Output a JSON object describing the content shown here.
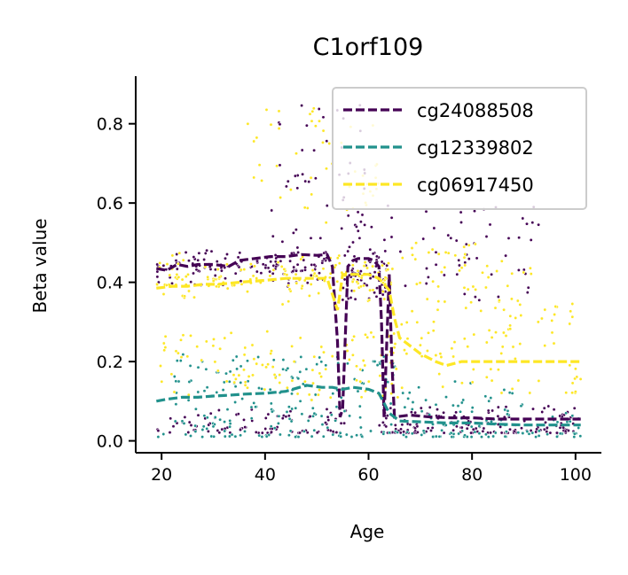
{
  "chart_data": {
    "type": "scatter",
    "title": "C1orf109",
    "xlabel": "Age",
    "ylabel": "Beta value",
    "xlim": [
      15,
      105
    ],
    "ylim": [
      -0.03,
      0.92
    ],
    "xticks": [
      20,
      40,
      60,
      80,
      100
    ],
    "yticks": [
      0.0,
      0.2,
      0.4,
      0.6,
      0.8
    ],
    "xtick_labels": [
      "20",
      "40",
      "60",
      "80",
      "100"
    ],
    "ytick_labels": [
      "0.0",
      "0.2",
      "0.4",
      "0.6",
      "0.8"
    ],
    "grid": false,
    "legend_position": "top-right",
    "series": [
      {
        "name": "cg24088508",
        "color": "#440154",
        "trend": [
          [
            19,
            0.435
          ],
          [
            21,
            0.43
          ],
          [
            23,
            0.445
          ],
          [
            25,
            0.44
          ],
          [
            27,
            0.445
          ],
          [
            30,
            0.445
          ],
          [
            33,
            0.44
          ],
          [
            35,
            0.455
          ],
          [
            38,
            0.46
          ],
          [
            41,
            0.465
          ],
          [
            44,
            0.465
          ],
          [
            47,
            0.47
          ],
          [
            50,
            0.468
          ],
          [
            52,
            0.47
          ],
          [
            53,
            0.44
          ],
          [
            54,
            0.25
          ],
          [
            54.5,
            0.06
          ],
          [
            55,
            0.08
          ],
          [
            56,
            0.44
          ],
          [
            57,
            0.455
          ],
          [
            58,
            0.46
          ],
          [
            60,
            0.46
          ],
          [
            61,
            0.455
          ],
          [
            62,
            0.44
          ],
          [
            62.5,
            0.3
          ],
          [
            63,
            0.06
          ],
          [
            64,
            0.42
          ],
          [
            64.5,
            0.2
          ],
          [
            65,
            0.06
          ],
          [
            68,
            0.065
          ],
          [
            72,
            0.06
          ],
          [
            76,
            0.058
          ],
          [
            80,
            0.058
          ],
          [
            85,
            0.055
          ],
          [
            90,
            0.055
          ],
          [
            95,
            0.055
          ],
          [
            101,
            0.055
          ]
        ],
        "clusters": [
          {
            "n": 130,
            "x": [
              19,
              52
            ],
            "y": [
              0.38,
              0.5
            ],
            "pattern": "upper"
          },
          {
            "n": 45,
            "x": [
              40,
              60
            ],
            "y": [
              0.5,
              0.86
            ],
            "pattern": "scatter"
          },
          {
            "n": 90,
            "x": [
              19,
              56
            ],
            "y": [
              0.02,
              0.08
            ],
            "pattern": "lower"
          },
          {
            "n": 60,
            "x": [
              55,
              64
            ],
            "y": [
              0.35,
              0.5
            ],
            "pattern": "upper"
          },
          {
            "n": 70,
            "x": [
              56,
              93
            ],
            "y": [
              0.35,
              0.6
            ],
            "pattern": "scatter"
          },
          {
            "n": 160,
            "x": [
              62,
              101
            ],
            "y": [
              0.02,
              0.09
            ],
            "pattern": "lower"
          }
        ]
      },
      {
        "name": "cg12339802",
        "color": "#21918c",
        "trend": [
          [
            19,
            0.1
          ],
          [
            21,
            0.105
          ],
          [
            24,
            0.11
          ],
          [
            27,
            0.11
          ],
          [
            30,
            0.113
          ],
          [
            33,
            0.115
          ],
          [
            36,
            0.118
          ],
          [
            40,
            0.12
          ],
          [
            44,
            0.125
          ],
          [
            48,
            0.14
          ],
          [
            51,
            0.135
          ],
          [
            53,
            0.135
          ],
          [
            55,
            0.13
          ],
          [
            57,
            0.135
          ],
          [
            60,
            0.13
          ],
          [
            62,
            0.12
          ],
          [
            64,
            0.07
          ],
          [
            66,
            0.05
          ],
          [
            70,
            0.048
          ],
          [
            75,
            0.045
          ],
          [
            80,
            0.045
          ],
          [
            85,
            0.042
          ],
          [
            90,
            0.04
          ],
          [
            95,
            0.04
          ],
          [
            101,
            0.04
          ]
        ],
        "clusters": [
          {
            "n": 180,
            "x": [
              19,
              101
            ],
            "y": [
              0.01,
              0.08
            ],
            "pattern": "lower"
          },
          {
            "n": 110,
            "x": [
              22,
              66
            ],
            "y": [
              0.08,
              0.22
            ],
            "pattern": "scatter"
          },
          {
            "n": 25,
            "x": [
              66,
              90
            ],
            "y": [
              0.07,
              0.15
            ],
            "pattern": "scatter"
          }
        ]
      },
      {
        "name": "cg06917450",
        "color": "#fde725",
        "trend": [
          [
            19,
            0.385
          ],
          [
            22,
            0.39
          ],
          [
            25,
            0.39
          ],
          [
            28,
            0.395
          ],
          [
            31,
            0.395
          ],
          [
            35,
            0.4
          ],
          [
            40,
            0.405
          ],
          [
            44,
            0.41
          ],
          [
            48,
            0.41
          ],
          [
            52,
            0.41
          ],
          [
            54,
            0.33
          ],
          [
            55,
            0.42
          ],
          [
            57,
            0.42
          ],
          [
            60,
            0.42
          ],
          [
            62,
            0.41
          ],
          [
            64,
            0.38
          ],
          [
            65,
            0.31
          ],
          [
            66,
            0.26
          ],
          [
            68,
            0.24
          ],
          [
            70,
            0.22
          ],
          [
            73,
            0.2
          ],
          [
            75,
            0.19
          ],
          [
            78,
            0.2
          ],
          [
            82,
            0.2
          ],
          [
            86,
            0.2
          ],
          [
            90,
            0.2
          ],
          [
            95,
            0.2
          ],
          [
            101,
            0.2
          ]
        ],
        "clusters": [
          {
            "n": 150,
            "x": [
              19,
              65
            ],
            "y": [
              0.34,
              0.48
            ],
            "pattern": "upper"
          },
          {
            "n": 50,
            "x": [
              36,
              62
            ],
            "y": [
              0.55,
              0.84
            ],
            "pattern": "scatter"
          },
          {
            "n": 110,
            "x": [
              19,
              66
            ],
            "y": [
              0.1,
              0.28
            ],
            "pattern": "scatter"
          },
          {
            "n": 100,
            "x": [
              64,
              101
            ],
            "y": [
              0.12,
              0.36
            ],
            "pattern": "scatter"
          },
          {
            "n": 40,
            "x": [
              64,
              92
            ],
            "y": [
              0.38,
              0.5
            ],
            "pattern": "scatter"
          }
        ]
      }
    ]
  }
}
